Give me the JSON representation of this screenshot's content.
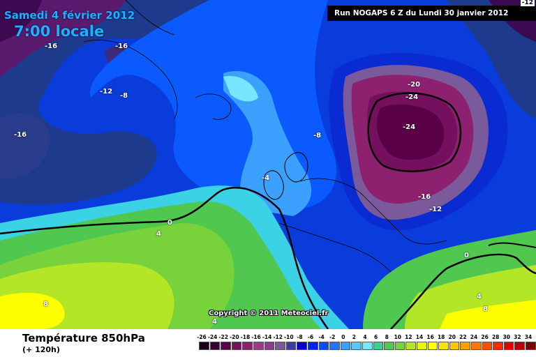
{
  "header": {
    "date": "Samedi 4 février 2012",
    "time": "7:00 locale",
    "run": "Run NOGAPS 6 Z du Lundi 30 janvier 2012",
    "corner_value": "-12"
  },
  "copyright": "Copyright © 2011 Meteociel.fr",
  "footer": {
    "title": "Température 850hPa",
    "subtitle": "(+ 120h)"
  },
  "scale": {
    "ticks": [
      "-26",
      "-24",
      "-22",
      "-20",
      "-18",
      "-16",
      "-14",
      "-12",
      "-10",
      "-8",
      "-6",
      "-4",
      "-2",
      "0",
      "2",
      "4",
      "6",
      "8",
      "10",
      "12",
      "14",
      "16",
      "18",
      "20",
      "22",
      "24",
      "26",
      "28",
      "30",
      "32",
      "34"
    ],
    "colors": [
      "#1a001a",
      "#3a0033",
      "#5a0046",
      "#74105d",
      "#8e2070",
      "#a03a86",
      "#8c3c8c",
      "#7a5a9a",
      "#3c3ca8",
      "#0000cc",
      "#0022ee",
      "#0a4aff",
      "#1e78ff",
      "#3ca0ff",
      "#5ac8ff",
      "#78e6ff",
      "#3cd296",
      "#50c850",
      "#78d23c",
      "#b4e628",
      "#e6f500",
      "#ffff00",
      "#ffe600",
      "#ffc800",
      "#ffa000",
      "#ff7800",
      "#ff5000",
      "#ff2800",
      "#e60000",
      "#b40000",
      "#780000"
    ]
  },
  "isotherm_labels": [
    {
      "name": "label-16-nw1",
      "text": "-16"
    },
    {
      "name": "label-16-nw2",
      "text": "-16"
    },
    {
      "name": "label-12-greenland",
      "text": "-12"
    },
    {
      "name": "label-8-greenland",
      "text": "-8"
    },
    {
      "name": "label-16-west",
      "text": "-16"
    },
    {
      "name": "label-20-russia",
      "text": "-20"
    },
    {
      "name": "label-24-russia1",
      "text": "-24"
    },
    {
      "name": "label-24-russia2",
      "text": "-24"
    },
    {
      "name": "label-8-norway",
      "text": "-8"
    },
    {
      "name": "label-4-uk",
      "text": "-4"
    },
    {
      "name": "label-16-east",
      "text": "-16"
    },
    {
      "name": "label-12-east",
      "text": "-12"
    },
    {
      "name": "label-0-atlantic",
      "text": "0"
    },
    {
      "name": "label-4-atlantic",
      "text": "4"
    },
    {
      "name": "label-0-east",
      "text": "0"
    },
    {
      "name": "label-8-africa",
      "text": "8"
    },
    {
      "name": "label-4-africa",
      "text": "4"
    },
    {
      "name": "label-4-east",
      "text": "4"
    },
    {
      "name": "label-8-east",
      "text": "8"
    }
  ]
}
